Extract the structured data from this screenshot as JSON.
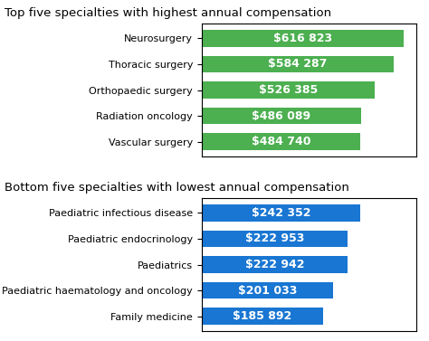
{
  "chart_data": [
    {
      "type": "bar",
      "orientation": "horizontal",
      "title": "Top five specialties with highest annual compensation",
      "categories": [
        "Neurosurgery",
        "Thoracic surgery",
        "Orthopaedic surgery",
        "Radiation oncology",
        "Vascular surgery"
      ],
      "values": [
        616823,
        584287,
        526385,
        486089,
        484740
      ],
      "value_labels": [
        "$616 823",
        "$584 287",
        "$526 385",
        "$486 089",
        "$484 740"
      ],
      "data_labels": true,
      "color": "#4caf50",
      "xlim": [
        0,
        653832.38
      ],
      "xticks": [],
      "tick_labels": "y",
      "grid": false
    },
    {
      "type": "bar",
      "orientation": "horizontal",
      "title": "Bottom five specialties with lowest annual compensation",
      "categories": [
        "Paediatric infectious disease",
        "Paediatric endocrinology",
        "Paediatrics",
        "Paediatric haematology and oncology",
        "Family medicine"
      ],
      "values": [
        242352,
        222953,
        222942,
        201033,
        185892
      ],
      "value_labels": [
        "$242 352",
        "$222 953",
        "$222 942",
        "$201 033",
        "$185 892"
      ],
      "data_labels": true,
      "color": "#1976d2",
      "xlim": [
        0,
        327175.2
      ],
      "xticks": [],
      "tick_labels": "y",
      "grid": false
    }
  ]
}
